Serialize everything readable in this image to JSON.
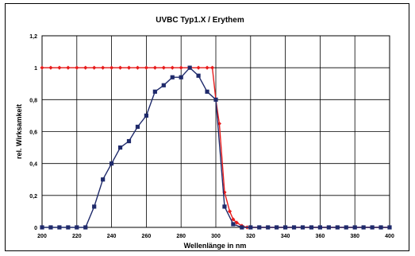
{
  "chart_data": {
    "type": "line",
    "title": "UVBC Typ1.X / Erythem",
    "xlabel": "Wellenlänge in nm",
    "ylabel": "rel. Wirksamkeit",
    "xlim": [
      200,
      400
    ],
    "ylim": [
      0,
      1.2
    ],
    "x_ticks": [
      200,
      220,
      240,
      260,
      280,
      300,
      320,
      340,
      360,
      380,
      400
    ],
    "y_ticks": [
      0,
      0.2,
      0.4,
      0.6,
      0.8,
      1,
      1.2
    ],
    "x_tick_labels": [
      "200",
      "220",
      "240",
      "260",
      "280",
      "300",
      "320",
      "340",
      "360",
      "380",
      "400"
    ],
    "y_tick_labels": [
      "0",
      "0,2",
      "0,4",
      "0,6",
      "0,8",
      "1",
      "1,2"
    ],
    "grid": true,
    "legend": "none",
    "series": [
      {
        "color": "#1f2a6b",
        "marker": "square",
        "x": [
          200,
          205,
          210,
          215,
          220,
          225,
          230,
          235,
          240,
          245,
          250,
          255,
          260,
          265,
          270,
          275,
          280,
          285,
          290,
          295,
          300,
          305,
          310,
          315,
          320,
          325,
          330,
          335,
          340,
          345,
          350,
          355,
          360,
          365,
          370,
          375,
          380,
          385,
          390,
          395,
          400
        ],
        "y": [
          0,
          0,
          0,
          0,
          0,
          0,
          0.13,
          0.3,
          0.4,
          0.5,
          0.54,
          0.63,
          0.7,
          0.85,
          0.89,
          0.94,
          0.94,
          1.0,
          0.95,
          0.85,
          0.8,
          0.13,
          0.02,
          0,
          0,
          0,
          0,
          0,
          0,
          0,
          0,
          0,
          0,
          0,
          0,
          0,
          0,
          0,
          0,
          0,
          0
        ]
      },
      {
        "color": "#e81c1c",
        "marker": "diamond",
        "x": [
          200,
          205,
          210,
          215,
          220,
          225,
          230,
          235,
          240,
          245,
          250,
          255,
          260,
          265,
          270,
          275,
          280,
          285,
          290,
          295,
          298,
          300,
          302,
          305,
          308,
          310,
          312,
          315,
          318,
          320,
          325,
          330,
          335,
          340,
          345,
          350,
          355,
          360,
          365,
          370,
          375,
          380,
          385,
          390,
          395,
          400
        ],
        "y": [
          1,
          1,
          1,
          1,
          1,
          1,
          1,
          1,
          1,
          1,
          1,
          1,
          1,
          1,
          1,
          1,
          1,
          1,
          1,
          1,
          1,
          0.8,
          0.65,
          0.22,
          0.1,
          0.05,
          0.03,
          0.01,
          0,
          0,
          0,
          0,
          0,
          0,
          0,
          0,
          0,
          0,
          0,
          0,
          0,
          0,
          0,
          0,
          0,
          0
        ]
      }
    ]
  }
}
